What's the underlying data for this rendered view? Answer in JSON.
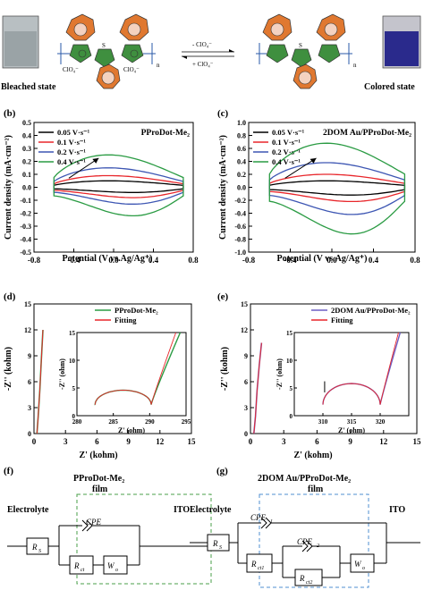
{
  "panel_a": {
    "label": "(a)",
    "bleached_caption": "Bleached state",
    "colored_caption": "Colored state",
    "arrow_top": "- ClO₄⁻",
    "arrow_bottom": "+ ClO₄⁻",
    "anion_left": "ClO₄⁻",
    "anion_right": "ClO₄⁻",
    "s_atom": "S",
    "n_sub": "n",
    "bleached_color": "#9aa3a6",
    "colored_color": "#2a2a8c",
    "ring_color": "#e07830",
    "thiophene_color": "#3f8f3f"
  },
  "panel_labels": {
    "b": "(b)",
    "c": "(c)",
    "d": "(d)",
    "e": "(e)",
    "f": "(f)",
    "g": "(g)"
  },
  "chart_data": [
    {
      "id": "b",
      "type": "line",
      "title": "PProDot-Me₂",
      "xlabel": "Potential (V vs.Ag/Ag⁺)",
      "ylabel": "Current density (mA·cm⁻²)",
      "xlim": [
        -0.8,
        0.8
      ],
      "ylim": [
        -0.5,
        0.5
      ],
      "xticks": [
        "-0.8",
        "-0.4",
        "0.0",
        "0.4",
        "0.8"
      ],
      "yticks": [
        "0.5",
        "0.4",
        "0.3",
        "0.2",
        "0.1",
        "0.0",
        "-0.1",
        "-0.2",
        "-0.3",
        "-0.4",
        "-0.5"
      ],
      "series": [
        {
          "name": "0.05 V·s⁻¹",
          "color": "#000000",
          "x_start": -0.6,
          "x_end": 0.7,
          "anodic_peak": 0.05,
          "cathodic_peak": -0.04
        },
        {
          "name": "0.1 V·s⁻¹",
          "color": "#e8262b",
          "x_start": -0.6,
          "x_end": 0.7,
          "anodic_peak": 0.09,
          "cathodic_peak": -0.08
        },
        {
          "name": "0.2 V·s⁻¹",
          "color": "#3d56b3",
          "x_start": -0.6,
          "x_end": 0.7,
          "anodic_peak": 0.15,
          "cathodic_peak": -0.13
        },
        {
          "name": "0.4 V·s⁻¹",
          "color": "#2a9b43",
          "x_start": -0.6,
          "x_end": 0.7,
          "anodic_peak": 0.25,
          "cathodic_peak": -0.22
        }
      ]
    },
    {
      "id": "c",
      "type": "line",
      "title": "2DOM Au/PProDot-Me₂",
      "xlabel": "Potential (V vs.Ag/Ag⁺)",
      "ylabel": "Current density (mA·cm⁻²)",
      "xlim": [
        -0.8,
        0.8
      ],
      "ylim": [
        -1.0,
        1.0
      ],
      "xticks": [
        "-0.8",
        "-0.4",
        "0.0",
        "0.4",
        "0.8"
      ],
      "yticks": [
        "1.0",
        "0.8",
        "0.6",
        "0.4",
        "0.2",
        "0.0",
        "-0.2",
        "-0.4",
        "-0.6",
        "-0.8",
        "-1.0"
      ],
      "series": [
        {
          "name": "0.05 V·s⁻¹",
          "color": "#000000",
          "x_start": -0.6,
          "x_end": 0.7,
          "anodic_peak": 0.1,
          "cathodic_peak": -0.12
        },
        {
          "name": "0.1 V·s⁻¹",
          "color": "#e8262b",
          "x_start": -0.6,
          "x_end": 0.7,
          "anodic_peak": 0.2,
          "cathodic_peak": -0.22
        },
        {
          "name": "0.2 V·s⁻¹",
          "color": "#3d56b3",
          "x_start": -0.6,
          "x_end": 0.7,
          "anodic_peak": 0.38,
          "cathodic_peak": -0.42
        },
        {
          "name": "0.4 V·s⁻¹",
          "color": "#2a9b43",
          "x_start": -0.6,
          "x_end": 0.7,
          "anodic_peak": 0.68,
          "cathodic_peak": -0.72
        }
      ]
    },
    {
      "id": "d",
      "type": "line",
      "xlabel": "Z' (kohm)",
      "ylabel": "-Z'' (kohm)",
      "xlim": [
        0,
        15
      ],
      "ylim": [
        0,
        15
      ],
      "xticks": [
        "0",
        "3",
        "6",
        "9",
        "12",
        "15"
      ],
      "yticks": [
        "0",
        "3",
        "6",
        "9",
        "12",
        "15"
      ],
      "series": [
        {
          "name": "PProDot-Me₂",
          "color": "#2a9b43",
          "x": [
            0.28,
            0.4,
            0.55,
            0.7,
            0.85
          ],
          "y": [
            0,
            2,
            5,
            8.5,
            12
          ]
        },
        {
          "name": "Fitting",
          "color": "#e8262b",
          "x": [
            0.28,
            0.4,
            0.55,
            0.7,
            0.85
          ],
          "y": [
            0,
            2,
            5,
            8.5,
            12
          ]
        }
      ],
      "inset": {
        "xlabel": "Z' (ohm)",
        "ylabel": "-Z'' (ohm)",
        "xlim": [
          280,
          295
        ],
        "ylim": [
          0,
          15
        ],
        "xticks": [
          "280",
          "285",
          "290",
          "295"
        ],
        "yticks": [
          "0",
          "5",
          "10",
          "15"
        ]
      }
    },
    {
      "id": "e",
      "type": "line",
      "xlabel": "Z' (kohm)",
      "ylabel": "-Z'' (kohm)",
      "xlim": [
        0,
        15
      ],
      "ylim": [
        0,
        15
      ],
      "xticks": [
        "0",
        "3",
        "6",
        "9",
        "12",
        "15"
      ],
      "yticks": [
        "0",
        "3",
        "6",
        "9",
        "12",
        "15"
      ],
      "series": [
        {
          "name": "2DOM Au/PProDot-Me₂",
          "color": "#6d5fc4",
          "x": [
            0.31,
            0.45,
            0.6,
            0.8,
            1.0
          ],
          "y": [
            0,
            2,
            5,
            8,
            10.5
          ]
        },
        {
          "name": "Fitting",
          "color": "#e8262b",
          "x": [
            0.31,
            0.45,
            0.6,
            0.8,
            1.0
          ],
          "y": [
            0,
            2,
            5,
            8,
            10.5
          ]
        }
      ],
      "inset": {
        "xlabel": "Z' (ohm)",
        "ylabel": "-Z'' (ohm)",
        "xlim": [
          305,
          325
        ],
        "ylim": [
          0,
          15
        ],
        "xticks": [
          "310",
          "315",
          "320"
        ],
        "yticks": [
          "0",
          "5",
          "10",
          "15"
        ]
      }
    }
  ],
  "panel_f": {
    "title_line1": "PProDot-Me₂",
    "title_line2": "film",
    "electrolyte": "Electrolyte",
    "ito": "ITO",
    "rs": "R",
    "rs_sub": "S",
    "cpe": "CPE",
    "rct": "R",
    "rct_sub": "ct",
    "wo": "W",
    "wo_sub": "o"
  },
  "panel_g": {
    "title_line1": "2DOM Au/PProDot-Me₂",
    "title_line2": "film",
    "electrolyte": "Electrolyte",
    "ito": "ITO",
    "rs": "R",
    "rs_sub": "S",
    "cpe1": "CPE",
    "cpe1_sub": "1",
    "cpe2": "CPE",
    "cpe2_sub": "2",
    "rct1": "R",
    "rct1_sub": "ct1",
    "rct2": "R",
    "rct2_sub": "ct2",
    "wo": "W",
    "wo_sub": "o"
  }
}
